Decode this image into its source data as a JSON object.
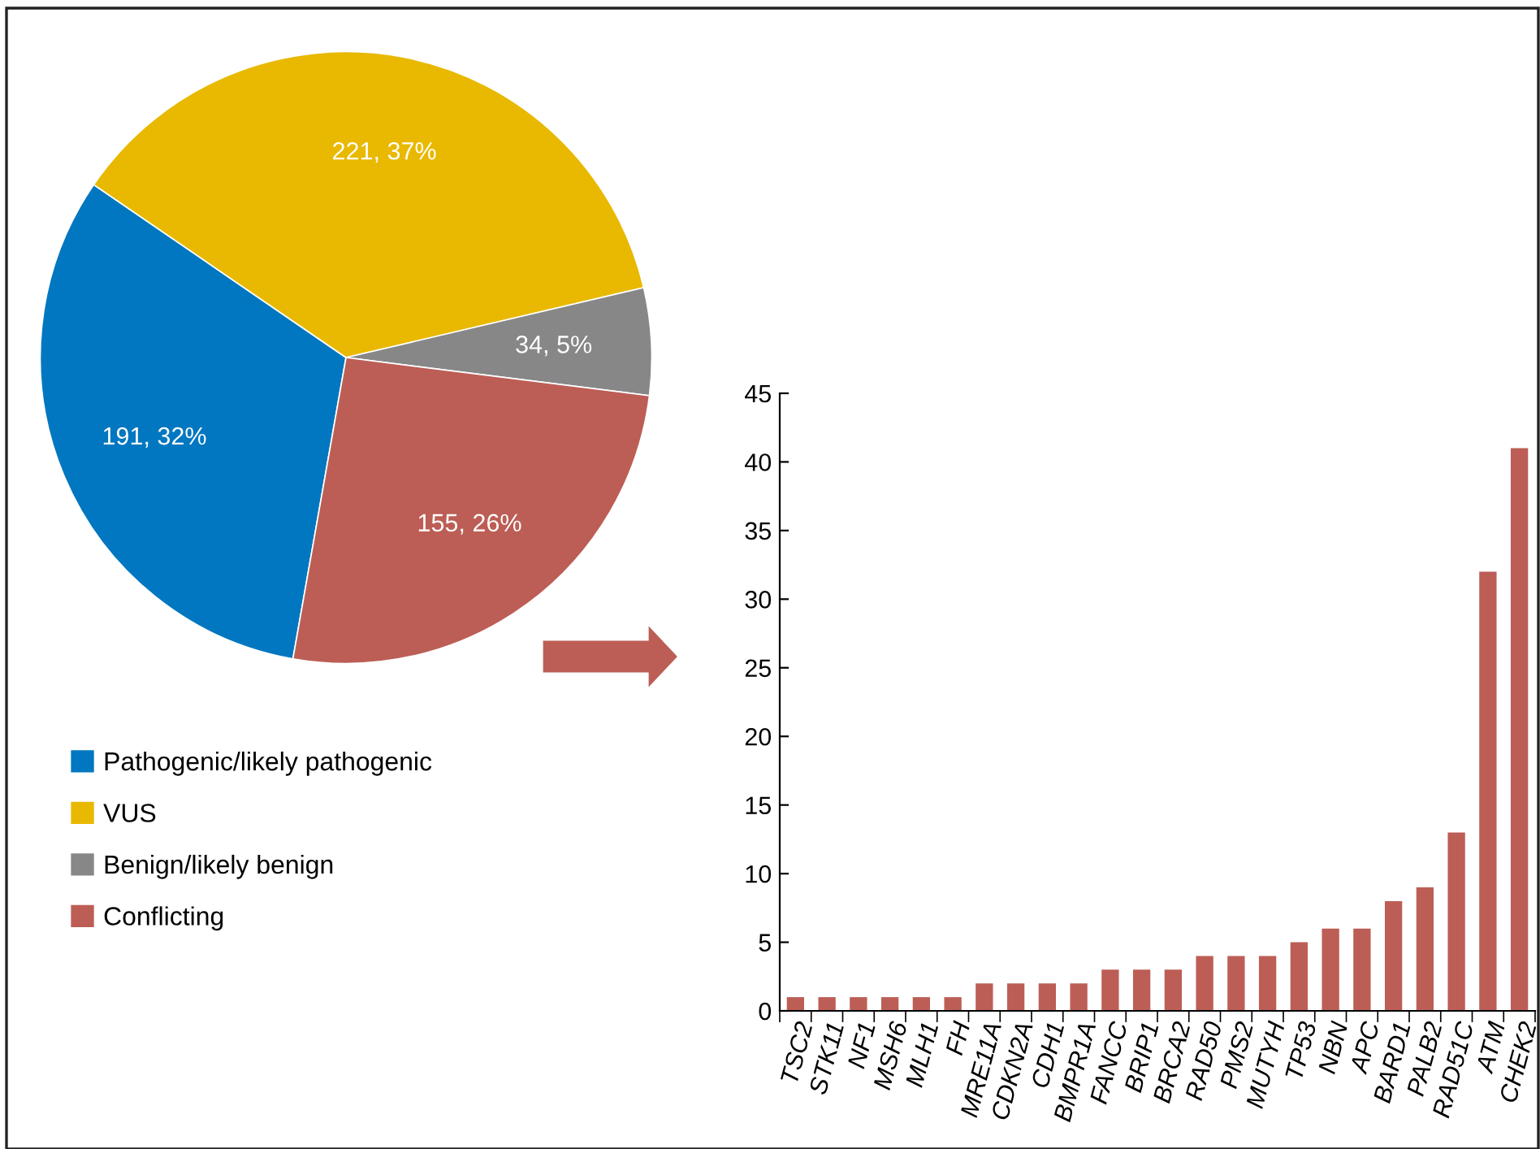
{
  "chart_data": [
    {
      "type": "pie",
      "categories": [
        "Pathogenic/likely pathogenic",
        "VUS",
        "Benign/likely benign",
        "Conflicting"
      ],
      "values": [
        191,
        221,
        34,
        155
      ],
      "colors": [
        "#0077c0",
        "#e8b900",
        "#878787",
        "#bc5e55"
      ],
      "value_labels": [
        "191, 32%",
        "221, 37%",
        "34, 5%",
        "155, 26%"
      ],
      "legend": "bottom"
    },
    {
      "type": "bar",
      "categories": [
        "TSC2",
        "STK11",
        "NF1",
        "MSH6",
        "MLH1",
        "FH",
        "MRE11A",
        "CDKN2A",
        "CDH1",
        "BMPR1A",
        "FANCC",
        "BRIP1",
        "BRCA2",
        "RAD50",
        "PMS2",
        "MUTYH",
        "TP53",
        "NBN",
        "APC",
        "BARD1",
        "PALB2",
        "RAD51C",
        "ATM",
        "CHEK2"
      ],
      "values": [
        1,
        1,
        1,
        1,
        1,
        1,
        2,
        2,
        2,
        2,
        3,
        3,
        3,
        4,
        4,
        4,
        5,
        6,
        6,
        8,
        9,
        13,
        32,
        41
      ],
      "color": "#bc5e55",
      "ylim": [
        0,
        45
      ],
      "yticks": [
        0,
        5,
        10,
        15,
        20,
        25,
        30,
        35,
        40,
        45
      ],
      "grid": false
    }
  ]
}
